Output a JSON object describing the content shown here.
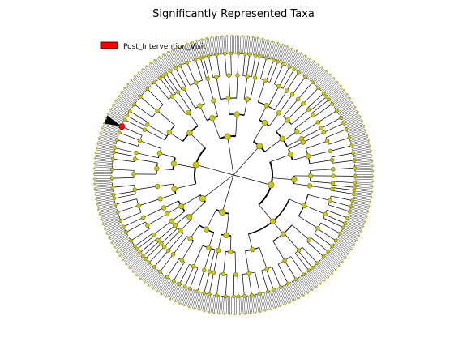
{
  "figure": {
    "title": "Significantly Represented Taxa",
    "legend": [
      {
        "label": "Post_Intervention_Visit",
        "color": "#ff0000"
      }
    ]
  },
  "colors": {
    "background": "#ffffff",
    "branch": "#000000",
    "node_fill": "#c8c820",
    "node_edge": "#707000",
    "highlight": "#ff0000"
  },
  "cladogram": {
    "type": "circular-cladogram",
    "levels": 6,
    "highlighted_clade_count": 1
  }
}
